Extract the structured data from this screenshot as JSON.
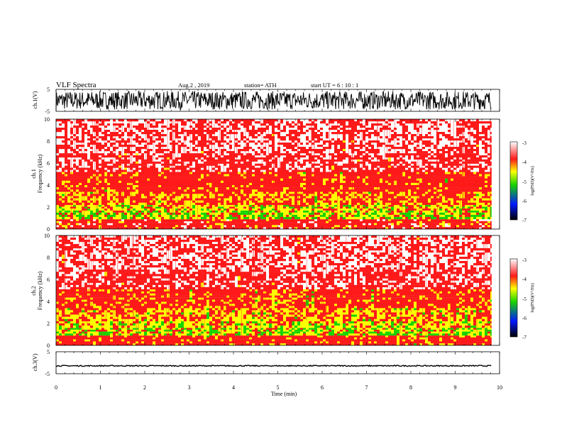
{
  "header": {
    "title": "VLF  Spectra",
    "date": "Aug.2  , 2019",
    "station": "station= ATH",
    "start": "start  UT  =   6  : 10 : 1"
  },
  "colors": {
    "low": "#000000",
    "mid_low": "#0018ff",
    "mid": "#19d400",
    "mid_high": "#ffff00",
    "high": "#ff1a1a",
    "top": "#ffffff"
  },
  "chart_data": [
    {
      "type": "line",
      "panel": "ch1-waveform",
      "ylabel": "ch.1(V)",
      "ylim": [
        -5,
        5
      ],
      "yticks": [
        "5",
        "-5"
      ],
      "xlim": [
        0,
        10
      ],
      "description_amplitude": "broadband noise spanning roughly -4 to +4 V"
    },
    {
      "type": "heatmap",
      "panel": "ch1-spectrogram",
      "ylabel_line1": "ch.1",
      "ylabel_line2": "Frequency  (kHz)",
      "ylim": [
        0,
        10
      ],
      "yticks": [
        "0",
        "2",
        "4",
        "6",
        "8",
        "10"
      ],
      "xlim": [
        0,
        10
      ],
      "x_data_end": 9.82,
      "bands_khz": [
        {
          "from": 0.0,
          "to": 0.9,
          "level": -3.5
        },
        {
          "from": 0.9,
          "to": 1.7,
          "level": -4.8
        },
        {
          "from": 1.7,
          "to": 2.2,
          "level": -4.3
        },
        {
          "from": 2.2,
          "to": 3.4,
          "level": -4.0
        },
        {
          "from": 3.4,
          "to": 5.2,
          "level": -3.6
        },
        {
          "from": 5.2,
          "to": 6.9,
          "level": -3.3
        },
        {
          "from": 6.9,
          "to": 10.0,
          "level": -3.1
        }
      ],
      "colorbar": {
        "label": "log(PSD)(V²/Hz)",
        "ticks": [
          "-3",
          "-4",
          "-5",
          "-6",
          "-7"
        ],
        "range": [
          -7,
          -3
        ]
      }
    },
    {
      "type": "heatmap",
      "panel": "ch2-spectrogram",
      "ylabel_line1": "ch.2",
      "ylabel_line2": "Frequency  (kHz)",
      "ylim": [
        0,
        10
      ],
      "yticks": [
        "0",
        "2",
        "4",
        "6",
        "8",
        "10"
      ],
      "xlim": [
        0,
        10
      ],
      "x_data_end": 9.82,
      "bands_khz": [
        {
          "from": 0.0,
          "to": 0.9,
          "level": -3.6
        },
        {
          "from": 0.9,
          "to": 1.6,
          "level": -4.9
        },
        {
          "from": 1.6,
          "to": 2.2,
          "level": -4.3
        },
        {
          "from": 2.2,
          "to": 3.4,
          "level": -4.1
        },
        {
          "from": 3.4,
          "to": 5.1,
          "level": -3.8
        },
        {
          "from": 5.1,
          "to": 6.9,
          "level": -3.3
        },
        {
          "from": 6.9,
          "to": 10.0,
          "level": -3.1
        }
      ],
      "colorbar": {
        "label": "log(PSD)(V²/Hz)",
        "ticks": [
          "-3",
          "-4",
          "-5",
          "-6",
          "-7"
        ],
        "range": [
          -7,
          -3
        ]
      }
    },
    {
      "type": "line",
      "panel": "ch3-waveform",
      "ylabel": "ch.3(V)",
      "ylim": [
        -5,
        5
      ],
      "yticks": [
        "5",
        "-5"
      ],
      "xlim": [
        0,
        10
      ],
      "level": -1.4,
      "xlabel": "Time  (min)",
      "xticks": [
        "0",
        "1",
        "2",
        "3",
        "4",
        "5",
        "6",
        "7",
        "8",
        "9",
        "10"
      ]
    }
  ]
}
